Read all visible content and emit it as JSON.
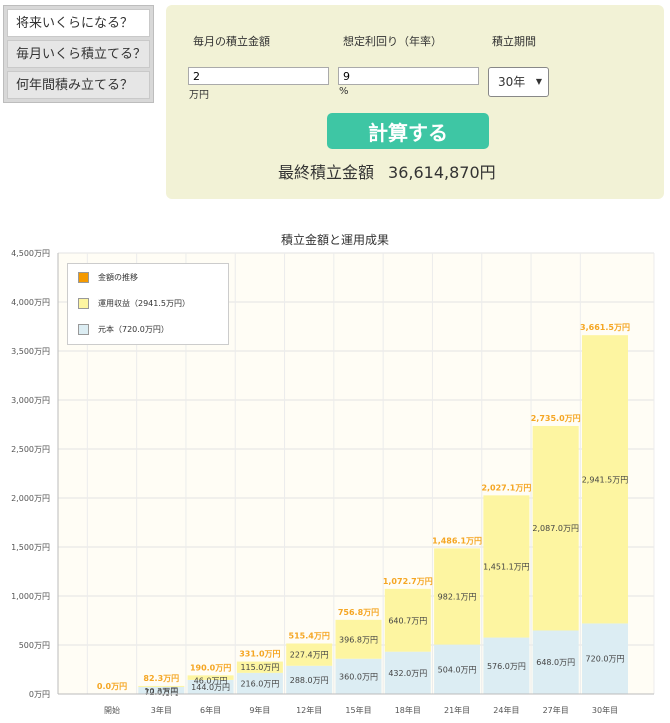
{
  "tabs": [
    "将来いくらになる？",
    "毎月いくら積立てる？",
    "何年間積み立てる？"
  ],
  "form": {
    "monthly_label": "毎月の積立金額",
    "rate_label": "想定利回り（年率）",
    "period_label": "積立期間",
    "monthly_value": "2",
    "monthly_unit": "万円",
    "rate_value": "9",
    "rate_unit": "%",
    "period_value": "30年",
    "calc_button": "計算する",
    "result_label": "最終積立金額",
    "result_value": "36,614,870円"
  },
  "colors": {
    "principal": "#dcedf3",
    "gain": "#fdf5a1",
    "total_label": "#f5a623",
    "legend_total": "#f59a00",
    "button": "#3ec6a4",
    "panel": "#f2f2d6"
  },
  "chart_data": {
    "type": "bar",
    "stacked": true,
    "title": "積立金額と運用成果",
    "categories": [
      "開始",
      "3年目",
      "6年目",
      "9年目",
      "12年目",
      "15年目",
      "18年目",
      "21年目",
      "24年目",
      "27年目",
      "30年目"
    ],
    "series": [
      {
        "name": "元本（720.0万円）",
        "values": [
          0,
          72.0,
          144.0,
          216.0,
          288.0,
          360.0,
          432.0,
          504.0,
          576.0,
          648.0,
          720.0
        ],
        "labels": [
          "",
          "72.0万円",
          "144.0万円",
          "216.0万円",
          "288.0万円",
          "360.0万円",
          "432.0万円",
          "504.0万円",
          "576.0万円",
          "648.0万円",
          "720.0万円"
        ]
      },
      {
        "name": "運用収益（2941.5万円）",
        "values": [
          0,
          10.3,
          46.0,
          115.0,
          227.4,
          396.8,
          640.7,
          982.1,
          1451.1,
          2087.0,
          2941.5
        ],
        "labels": [
          "",
          "10.3万円",
          "46.0万円",
          "115.0万円",
          "227.4万円",
          "396.8万円",
          "640.7万円",
          "982.1万円",
          "1,451.1万円",
          "2,087.0万円",
          "2,941.5万円"
        ]
      }
    ],
    "totals": [
      0,
      82.3,
      190.0,
      331.0,
      515.4,
      756.8,
      1072.7,
      1486.1,
      2027.1,
      2735.0,
      3661.5
    ],
    "total_labels": [
      "0.0万円",
      "82.3万円",
      "190.0万円",
      "331.0万円",
      "515.4万円",
      "756.8万円",
      "1,072.7万円",
      "1,486.1万円",
      "2,027.1万円",
      "2,735.0万円",
      "3,661.5万円"
    ],
    "legend": [
      "金額の推移",
      "運用収益（2941.5万円）",
      "元本（720.0万円）"
    ],
    "y_ticks": [
      0,
      500,
      1000,
      1500,
      2000,
      2500,
      3000,
      3500,
      4000,
      4500
    ],
    "y_tick_labels": [
      "0万円",
      "500万円",
      "1,000万円",
      "1,500万円",
      "2,000万円",
      "2,500万円",
      "3,000万円",
      "3,500万円",
      "4,000万円",
      "4,500万円"
    ],
    "ylim": [
      0,
      4500
    ],
    "legend_position": "top-left",
    "grid": true
  }
}
